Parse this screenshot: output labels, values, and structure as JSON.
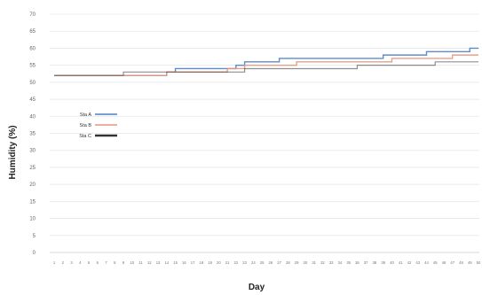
{
  "chart_data": {
    "type": "line",
    "xlabel": "Day",
    "ylabel": "Humidity (%)",
    "ylim": [
      0,
      70
    ],
    "yticks": [
      0,
      5,
      10,
      15,
      20,
      25,
      30,
      35,
      40,
      45,
      50,
      55,
      60,
      65,
      70
    ],
    "grid": true,
    "legend_position": "left, mid-height",
    "x": [
      1,
      2,
      3,
      4,
      5,
      6,
      7,
      8,
      9,
      10,
      11,
      12,
      13,
      14,
      15,
      16,
      17,
      18,
      19,
      20,
      21,
      22,
      23,
      24,
      25,
      26,
      27,
      28,
      29,
      30,
      31,
      32,
      33,
      34,
      35,
      36,
      37,
      38,
      39,
      40,
      41,
      42,
      43,
      44,
      45,
      46,
      47,
      48,
      49,
      50
    ],
    "series": [
      {
        "name": "Sta A",
        "color": "#4a7fc8",
        "values": [
          52,
          52,
          52,
          52,
          52,
          52,
          52,
          52,
          52,
          52,
          52,
          52,
          52,
          53,
          54,
          54,
          54,
          54,
          54,
          54,
          54,
          55,
          56,
          56,
          56,
          56,
          57,
          57,
          57,
          57,
          57,
          57,
          57,
          57,
          57,
          57,
          57,
          57,
          58,
          58,
          58,
          58,
          58,
          59,
          59,
          59,
          59,
          59,
          60,
          60
        ]
      },
      {
        "name": "Sta B",
        "color": "#e8957a",
        "values": [
          52,
          52,
          52,
          52,
          52,
          52,
          52,
          52,
          52,
          52,
          52,
          52,
          52,
          53,
          53,
          53,
          53,
          53,
          53,
          53,
          54,
          54,
          55,
          55,
          55,
          55,
          55,
          55,
          56,
          56,
          56,
          56,
          56,
          56,
          56,
          56,
          56,
          56,
          56,
          57,
          57,
          57,
          57,
          57,
          57,
          57,
          58,
          58,
          58,
          58
        ]
      },
      {
        "name": "Sta C",
        "color": "#333333",
        "values": [
          52,
          52,
          52,
          52,
          52,
          52,
          52,
          52,
          53,
          53,
          53,
          53,
          53,
          53,
          53,
          53,
          53,
          53,
          53,
          53,
          53,
          53,
          54,
          54,
          54,
          54,
          54,
          54,
          54,
          54,
          54,
          54,
          54,
          54,
          54,
          55,
          55,
          55,
          55,
          55,
          55,
          55,
          55,
          55,
          56,
          56,
          56,
          56,
          56,
          56
        ]
      }
    ]
  }
}
